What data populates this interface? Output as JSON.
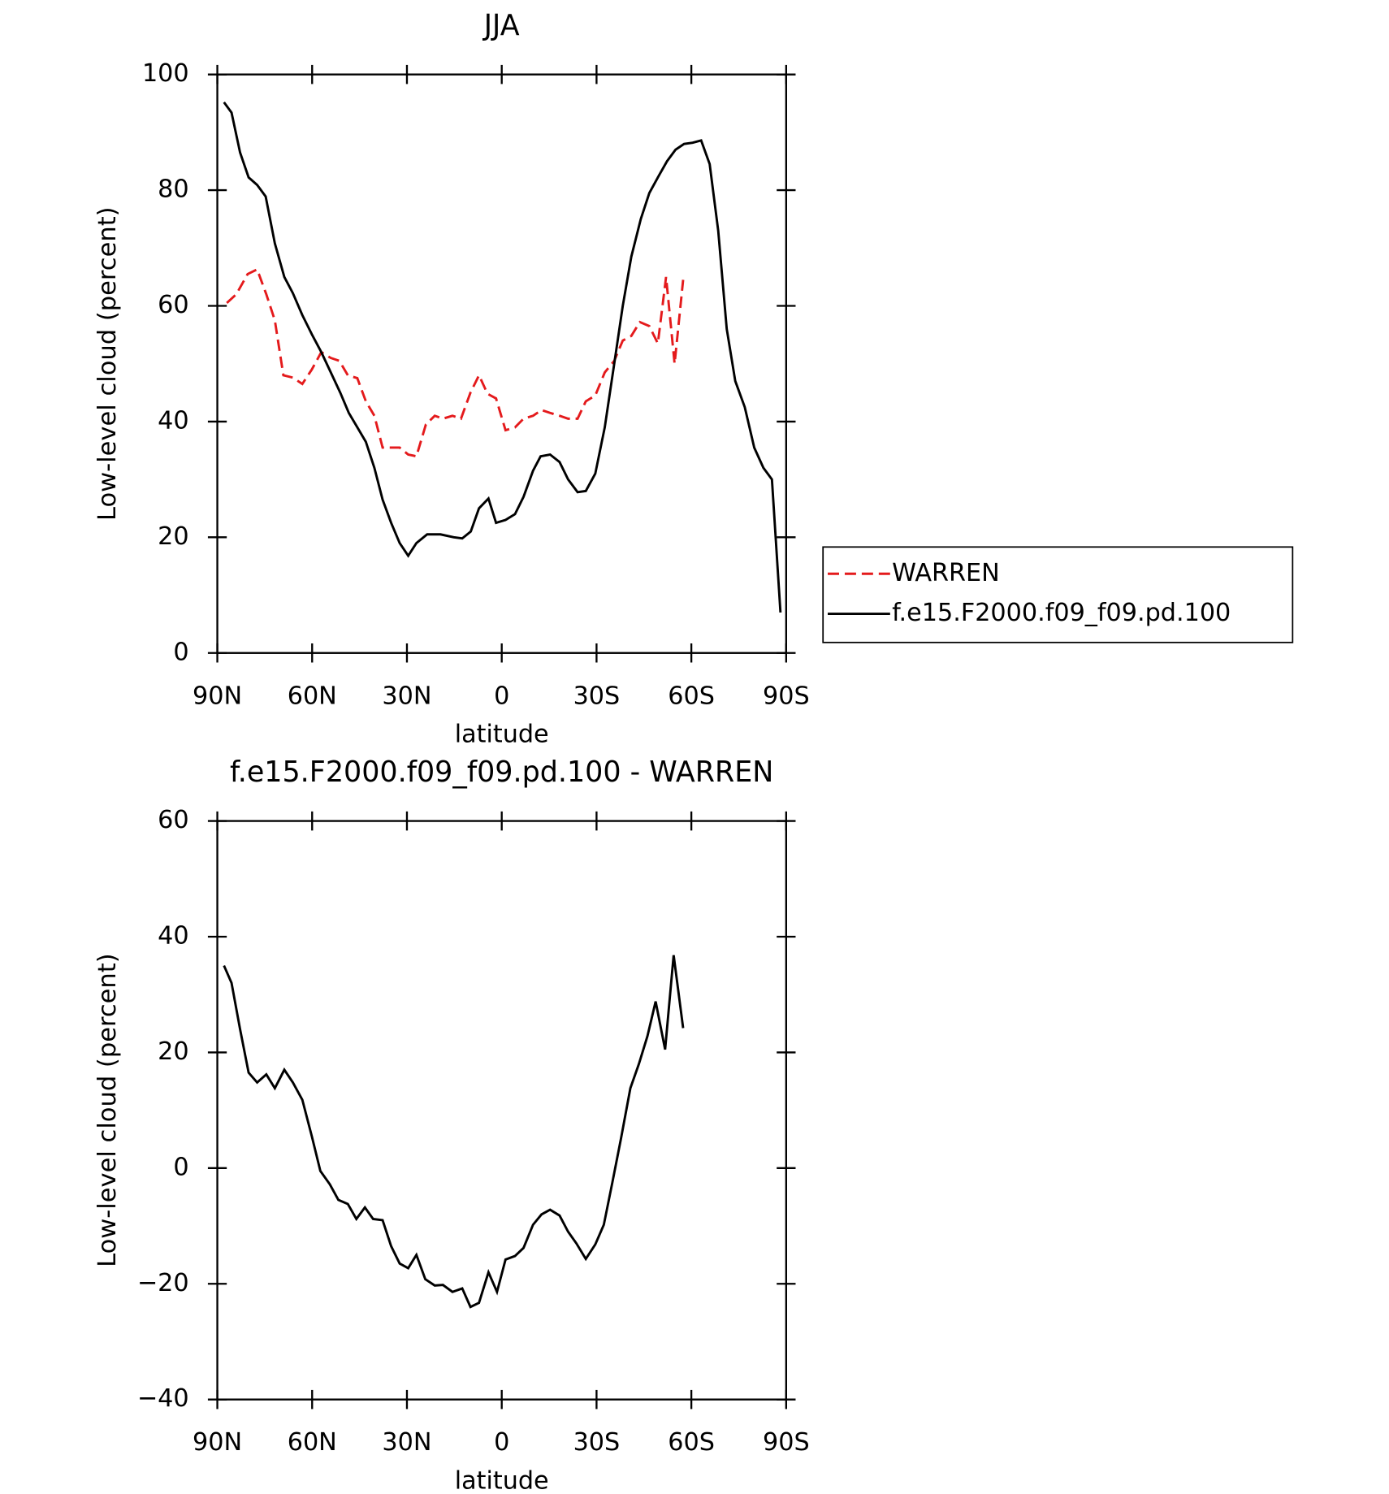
{
  "chart_data": [
    {
      "type": "line",
      "title": "JJA",
      "xlabel": "latitude",
      "ylabel": "Low-level cloud (percent)",
      "xlim": [
        90,
        -90
      ],
      "ylim": [
        0,
        100
      ],
      "xticks": [
        {
          "value": 90,
          "label": "90N"
        },
        {
          "value": 60,
          "label": "60N"
        },
        {
          "value": 30,
          "label": "30N"
        },
        0,
        {
          "value": -30,
          "label": "30S"
        },
        {
          "value": -60,
          "label": "60S"
        },
        {
          "value": -90,
          "label": "90S"
        }
      ],
      "yticks": [
        0,
        20,
        40,
        60,
        80,
        100
      ],
      "legend": "right",
      "series": [
        {
          "name": "WARREN",
          "color": "#e41a1c",
          "line_style": "dashed",
          "x": [
            87,
            84,
            80.4,
            77.4,
            74.5,
            71.8,
            69.1,
            66.1,
            63.1,
            60.1,
            57.1,
            54.1,
            51.4,
            48.7,
            45.7,
            43,
            40.3,
            37.7,
            35,
            32.3,
            29.6,
            27,
            24,
            21.2,
            18.6,
            15.6,
            12.9,
            9.9,
            7.2,
            4.5,
            1.8,
            -1.2,
            -4.2,
            -6.9,
            -9.9,
            -12.6,
            -15.3,
            -18.3,
            -21,
            -24,
            -26.6,
            -29.6,
            -32.6,
            -35.6,
            -38.3,
            -41,
            -43.7,
            -46.7,
            -49.4,
            -52,
            -54.7,
            -57.4
          ],
          "values": [
            60.5,
            62,
            65.5,
            66.3,
            62,
            57.5,
            48,
            47.6,
            46.5,
            49,
            52,
            51,
            50.5,
            48,
            47.5,
            43.5,
            41,
            35.5,
            35.5,
            35.5,
            34.3,
            34,
            39.5,
            41,
            40.5,
            41,
            40.5,
            45,
            48,
            44.8,
            44,
            38.5,
            39,
            40.5,
            41,
            42,
            41.5,
            41,
            40.5,
            40.5,
            43.5,
            44.5,
            48.5,
            50.5,
            54,
            54.8,
            57.2,
            56.5,
            53.5,
            65,
            50,
            64.5
          ]
        },
        {
          "name": "f.e15.F2000.f09_f09.pd.100",
          "color": "#000000",
          "line_style": "solid",
          "x": [
            87.9,
            85.5,
            82.8,
            80.1,
            77.4,
            74.7,
            71.8,
            68.8,
            66.1,
            63.1,
            60.1,
            57.1,
            54.1,
            51.1,
            48.4,
            45.7,
            43,
            40.3,
            37.7,
            35,
            32.3,
            29.6,
            27,
            23.6,
            19.4,
            15.2,
            12.5,
            9.8,
            7.2,
            4.2,
            1.8,
            -1.2,
            -4.2,
            -6.9,
            -9.9,
            -12.3,
            -15.3,
            -18.3,
            -21,
            -24,
            -26.6,
            -29.6,
            -32.6,
            -35.6,
            -38.3,
            -41,
            -44,
            -46.7,
            -49.7,
            -52.3,
            -55,
            -57.7,
            -60.4,
            -63.1,
            -65.8,
            -68.5,
            -71.2,
            -73.9,
            -76.9,
            -79.9,
            -82.8,
            -85.5,
            -88.2
          ],
          "values": [
            95.2,
            93.4,
            86.5,
            82.2,
            80.9,
            78.9,
            70.8,
            65,
            62.2,
            58.4,
            55.1,
            52,
            48.5,
            45,
            41.5,
            39,
            36.5,
            32,
            26.5,
            22.5,
            19,
            16.8,
            19,
            20.5,
            20.5,
            20,
            19.8,
            21,
            25,
            26.7,
            22.5,
            23,
            24,
            27,
            31.5,
            34,
            34.3,
            33,
            30,
            27.8,
            28,
            31,
            39,
            50,
            60,
            68.5,
            75,
            79.5,
            82.5,
            85,
            87,
            88,
            88.2,
            88.6,
            84.5,
            73,
            56,
            47,
            42.5,
            35.5,
            32,
            30,
            7
          ]
        }
      ]
    },
    {
      "type": "line",
      "title": "f.e15.F2000.f09_f09.pd.100 - WARREN",
      "xlabel": "latitude",
      "ylabel": "Low-level cloud (percent)",
      "xlim": [
        90,
        -90
      ],
      "ylim": [
        -40,
        60
      ],
      "xticks": [
        {
          "value": 90,
          "label": "90N"
        },
        {
          "value": 60,
          "label": "60N"
        },
        {
          "value": 30,
          "label": "30N"
        },
        0,
        {
          "value": -30,
          "label": "30S"
        },
        {
          "value": -60,
          "label": "60S"
        },
        {
          "value": -90,
          "label": "90S"
        }
      ],
      "yticks": [
        {
          "value": -40,
          "label": "−40"
        },
        {
          "value": -20,
          "label": "−20"
        },
        0,
        20,
        40,
        60
      ],
      "series": [
        {
          "color": "#000000",
          "line_style": "solid",
          "x": [
            87.9,
            85.5,
            82.8,
            80.1,
            77.4,
            74.5,
            71.8,
            68.8,
            66.1,
            63.1,
            60.1,
            57.4,
            54.4,
            51.7,
            48.7,
            46,
            43.3,
            40.7,
            37.7,
            35,
            32.3,
            29.6,
            27,
            24.2,
            21.2,
            18.6,
            15.6,
            12.5,
            9.9,
            7.2,
            4.2,
            1.5,
            -1.2,
            -4.2,
            -6.9,
            -9.9,
            -12.6,
            -15.3,
            -18.3,
            -21,
            -23.6,
            -26.6,
            -29.6,
            -32.3,
            -35,
            -37.7,
            -40.7,
            -43.4,
            -46.1,
            -48.7,
            -51.7,
            -54.4,
            -57.4
          ],
          "values": [
            35,
            32,
            24,
            16.5,
            14.8,
            16.2,
            13.8,
            17,
            14.8,
            11.8,
            5.5,
            -0.5,
            -2.8,
            -5.5,
            -6.2,
            -8.8,
            -6.8,
            -8.8,
            -9,
            -13.5,
            -16.5,
            -17.3,
            -15,
            -19.2,
            -20.3,
            -20.2,
            -21.4,
            -20.8,
            -24,
            -23.3,
            -18,
            -21.4,
            -15.8,
            -15.2,
            -13.8,
            -9.8,
            -8,
            -7.2,
            -8.2,
            -11,
            -13,
            -15.7,
            -13.2,
            -9.8,
            -2.5,
            5,
            13.8,
            18,
            22.8,
            28.8,
            20.5,
            36.8,
            24.2
          ]
        }
      ]
    }
  ]
}
